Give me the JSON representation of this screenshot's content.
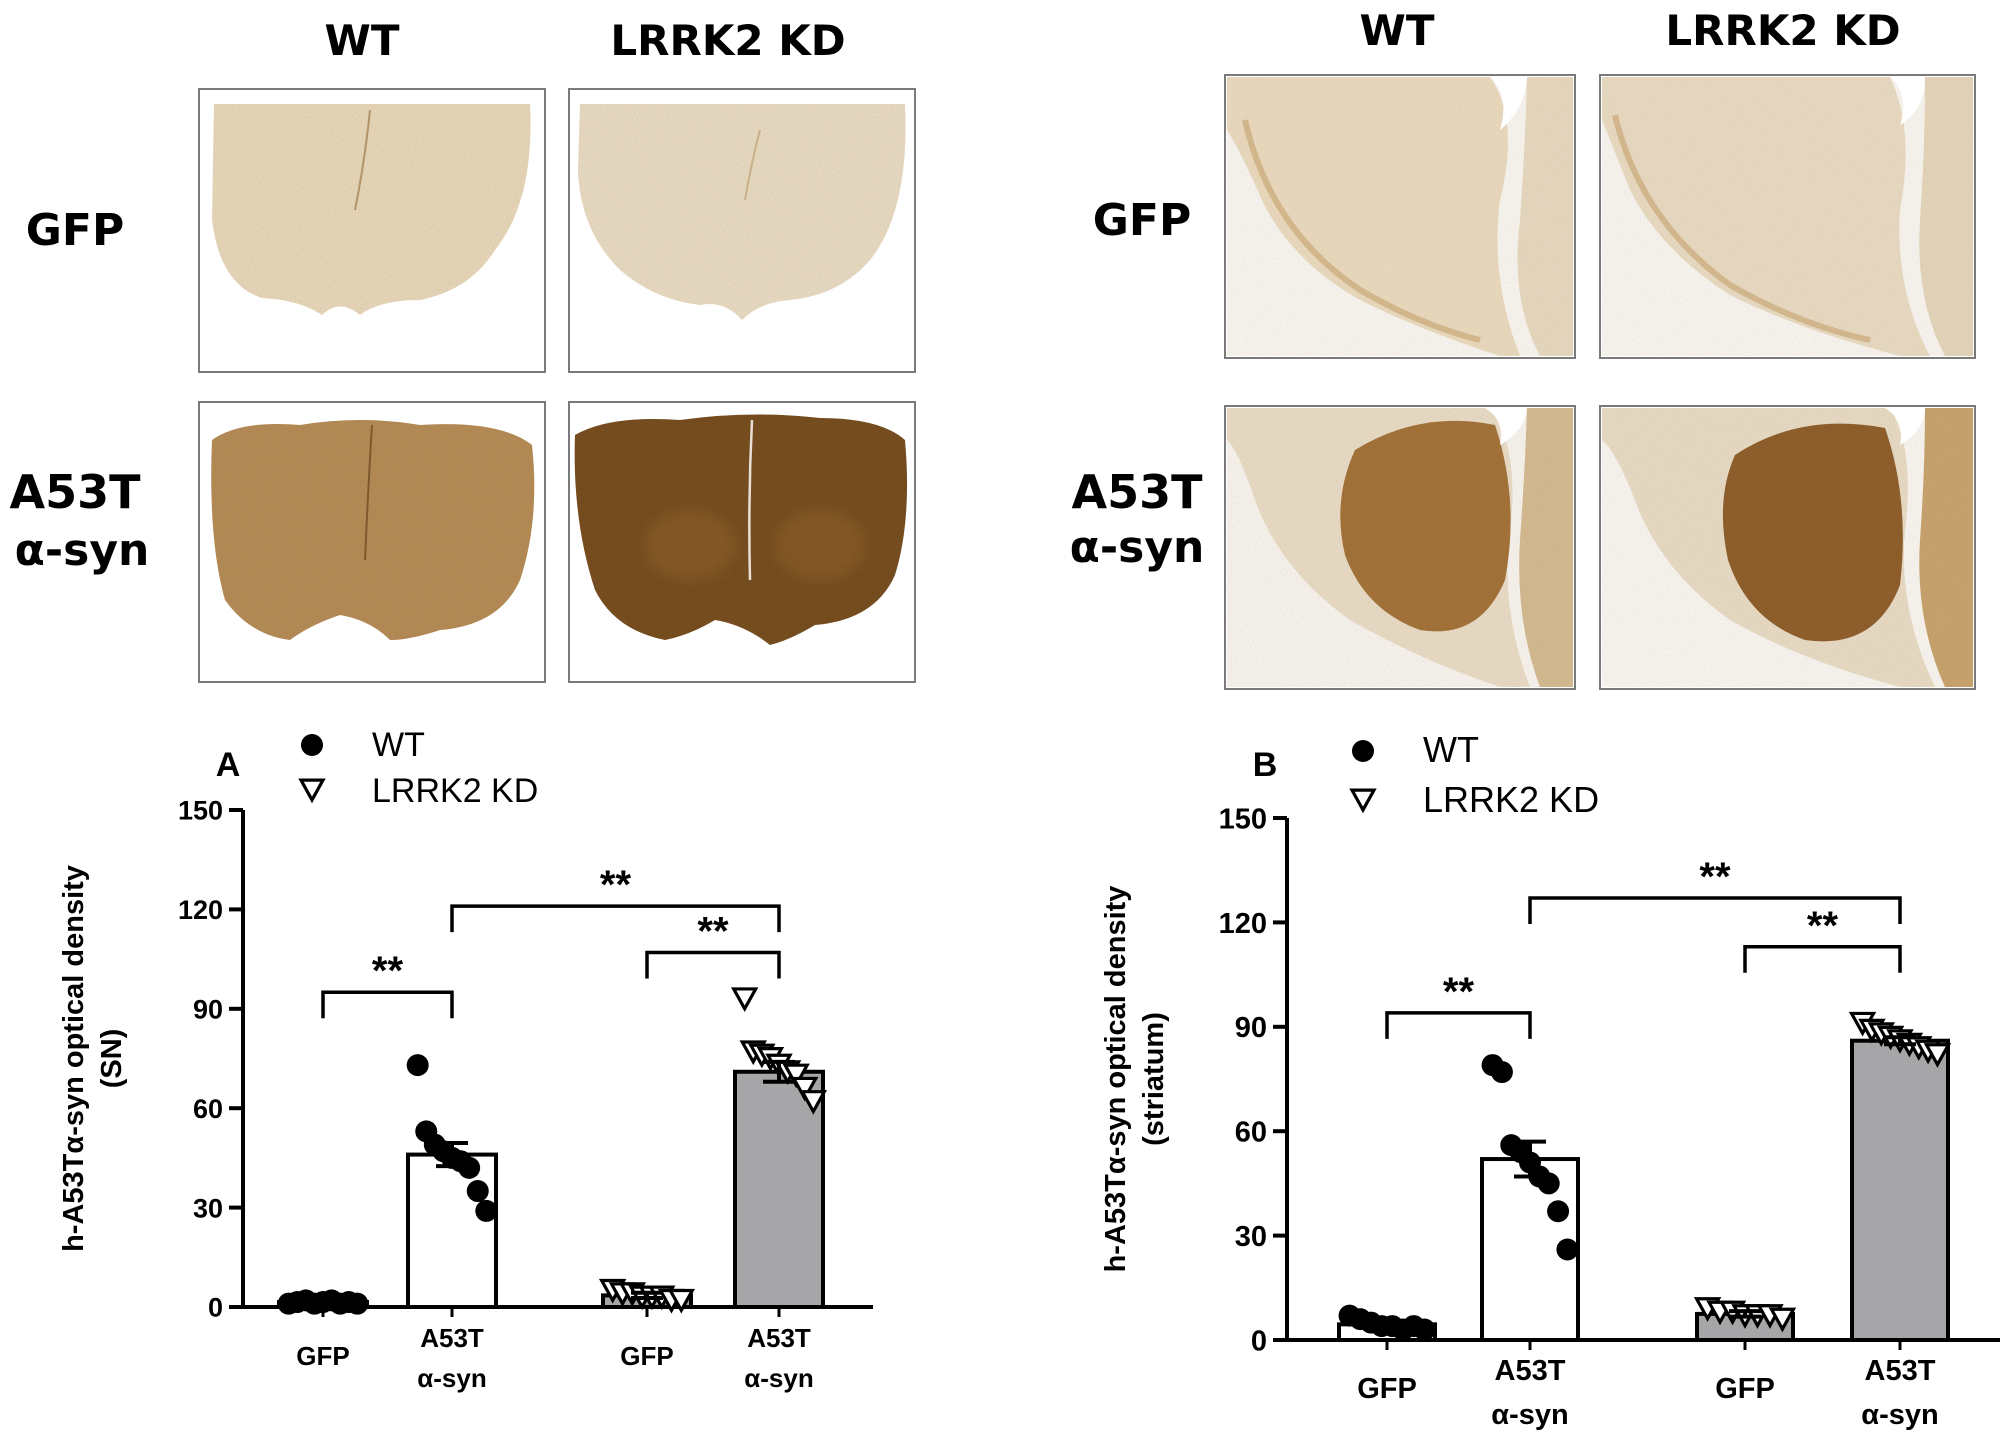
{
  "histology": [
    {
      "id": "sn",
      "col_headers": [
        "WT",
        "LRRK2 KD"
      ],
      "row_labels": [
        [
          "GFP"
        ],
        [
          "A53T",
          "α-syn"
        ]
      ]
    },
    {
      "id": "striatum",
      "col_headers": [
        "WT",
        "LRRK2 KD"
      ],
      "row_labels": [
        [
          "GFP"
        ],
        [
          "A53T",
          "α-syn"
        ]
      ]
    }
  ],
  "colors": {
    "bar_wt": "#ffffff",
    "bar_kd": "#a6a6a8",
    "stain_light": "#efe3cf",
    "stain_dark": "#6e4518"
  },
  "chart_data": [
    {
      "panel": "A",
      "type": "bar",
      "ylabel": [
        "h-A53Tα-syn optical density",
        "(SN)"
      ],
      "ylim": [
        0,
        150
      ],
      "yticks": [
        0,
        30,
        60,
        90,
        120,
        150
      ],
      "legend": [
        {
          "label": "WT",
          "marker": "filled-circle"
        },
        {
          "label": "LRRK2 KD",
          "marker": "open-triangle-down"
        }
      ],
      "categories": [
        [
          "GFP"
        ],
        [
          "A53T",
          "α-syn"
        ],
        [
          "GFP"
        ],
        [
          "A53T",
          "α-syn"
        ]
      ],
      "groups": [
        "WT",
        "WT",
        "LRRK2 KD",
        "LRRK2 KD"
      ],
      "means": [
        1.5,
        46,
        3.5,
        71
      ],
      "sem": [
        0.3,
        3.5,
        0.8,
        3
      ],
      "points": [
        [
          1,
          1.5,
          2,
          1,
          1.5,
          2,
          1,
          1.5,
          1
        ],
        [
          73,
          53,
          49,
          47,
          45,
          44,
          42,
          35,
          29
        ],
        [
          5,
          4,
          4,
          3,
          3,
          3,
          2,
          2
        ],
        [
          93,
          77,
          76,
          75,
          73,
          71,
          70,
          66,
          62
        ]
      ],
      "significance": [
        {
          "from": 0,
          "to": 1,
          "label": "**",
          "level": 95
        },
        {
          "from": 2,
          "to": 3,
          "label": "**",
          "level": 107
        },
        {
          "from": 1,
          "to": 3,
          "label": "**",
          "level": 121
        }
      ]
    },
    {
      "panel": "B",
      "type": "bar",
      "ylabel": [
        "h-A53Tα-syn optical density",
        "(striatum)"
      ],
      "ylim": [
        0,
        150
      ],
      "yticks": [
        0,
        30,
        60,
        90,
        120,
        150
      ],
      "legend": [
        {
          "label": "WT",
          "marker": "filled-circle"
        },
        {
          "label": "LRRK2 KD",
          "marker": "open-triangle-down"
        }
      ],
      "categories": [
        [
          "GFP"
        ],
        [
          "A53T",
          "α-syn"
        ],
        [
          "GFP"
        ],
        [
          "A53T",
          "α-syn"
        ]
      ],
      "groups": [
        "WT",
        "WT",
        "LRRK2 KD",
        "LRRK2 KD"
      ],
      "means": [
        4.5,
        52,
        7.5,
        86
      ],
      "sem": [
        0.5,
        5,
        0.8,
        1
      ],
      "points": [
        [
          7,
          6,
          5,
          4,
          4,
          3,
          4,
          3
        ],
        [
          79,
          77,
          56,
          54,
          51,
          47,
          45,
          37,
          26
        ],
        [
          9,
          8,
          8,
          7,
          7,
          7,
          6
        ],
        [
          91,
          89,
          88,
          87,
          86,
          85,
          84,
          83,
          82
        ]
      ],
      "significance": [
        {
          "from": 0,
          "to": 1,
          "label": "**",
          "level": 94
        },
        {
          "from": 2,
          "to": 3,
          "label": "**",
          "level": 113
        },
        {
          "from": 1,
          "to": 3,
          "label": "**",
          "level": 127
        }
      ]
    }
  ]
}
